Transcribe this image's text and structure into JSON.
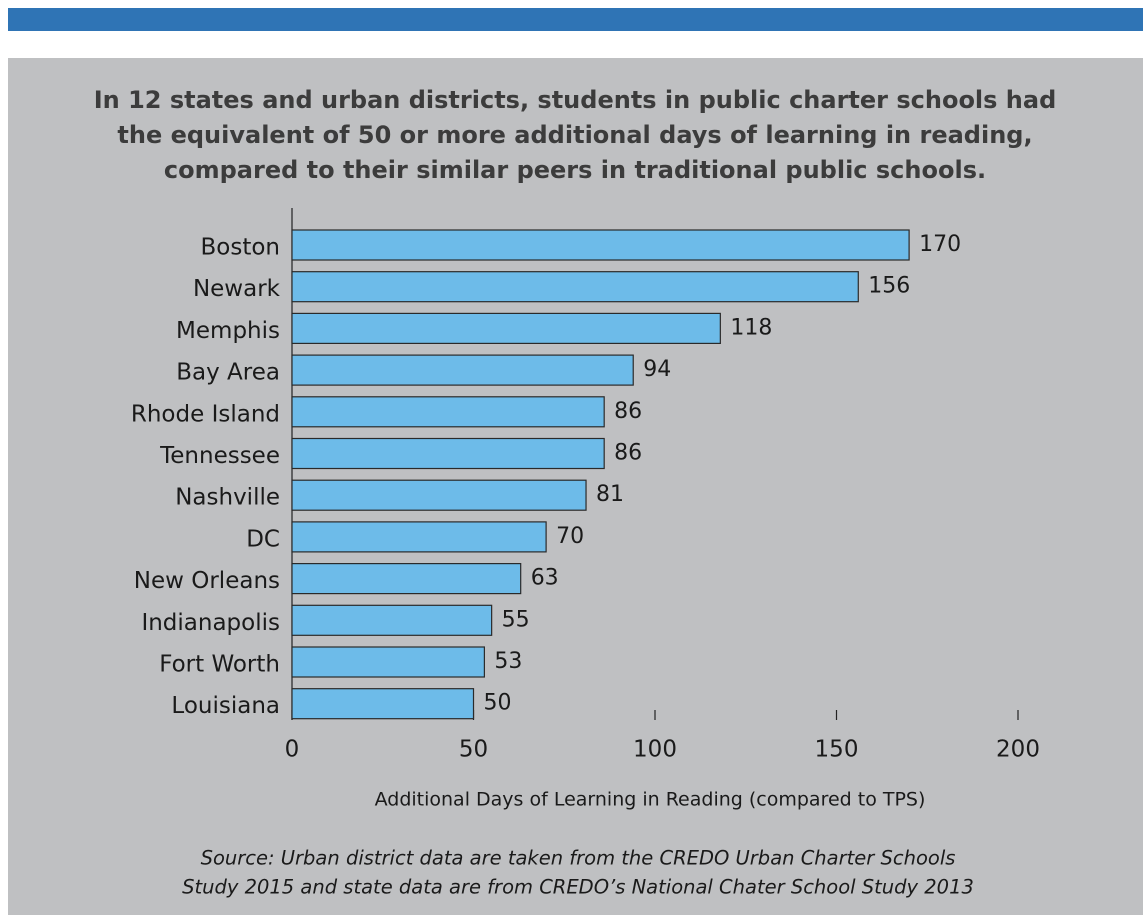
{
  "chart_data": {
    "type": "barh",
    "title": [
      "In 12 states and urban districts, students in public charter schools had",
      "the equivalent of 50 or more additional days of learning in reading,",
      "compared to their similar peers in traditional public schools."
    ],
    "categories": [
      "Boston",
      "Newark",
      "Memphis",
      "Bay Area",
      "Rhode Island",
      "Tennessee",
      "Nashville",
      "DC",
      "New Orleans",
      "Indianapolis",
      "Fort Worth",
      "Louisiana"
    ],
    "values": [
      170,
      156,
      118,
      94,
      86,
      86,
      81,
      70,
      63,
      55,
      53,
      50
    ],
    "color": "#6dbbe9",
    "xlim": [
      0,
      200
    ],
    "xticks": [
      0,
      50,
      100,
      150,
      200
    ],
    "xlabel": "Additional Days of Learning in Reading (compared to TPS)",
    "source": [
      "Source: Urban district data are taken from the CREDO Urban Charter Schools",
      "Study 2015 and state data are from CREDO’s National Chater School Study 2013"
    ]
  }
}
